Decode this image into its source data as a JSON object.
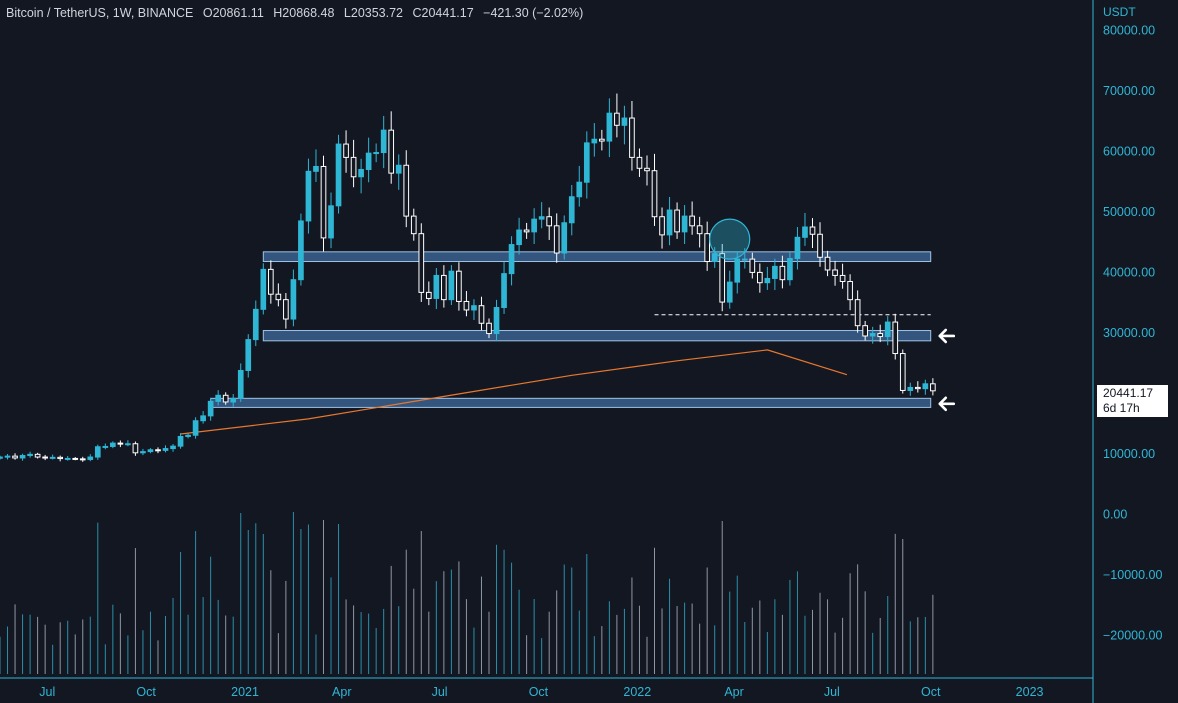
{
  "header": {
    "symbol": "Bitcoin / TetherUS, 1W, BINANCE",
    "open_label": "O",
    "open": "20861.11",
    "high_label": "H",
    "high": "20868.48",
    "low_label": "L",
    "low": "20353.72",
    "close_label": "C",
    "close": "20441.17",
    "change": "−421.30 (−2.02%)"
  },
  "axis_unit": "USDT",
  "last_price": {
    "value": "20441.17",
    "countdown": "6d 17h"
  },
  "colors": {
    "background": "#131722",
    "up": "#2fb6d5",
    "down": "#ffffff",
    "zone_fill": "#33557e",
    "zone_border": "#9fc3e6",
    "ma": "#e8782e",
    "axis_text": "#2fb6d5",
    "volume_up": "#2a8fa8",
    "volume_down": "#8e96a3"
  },
  "chart_data": {
    "type": "candlestick",
    "timeframe": "1W",
    "x_range": [
      "2020-05-18",
      "2023-03-01"
    ],
    "ylim": [
      -27000,
      85000
    ],
    "y_ticks": [
      {
        "value": 80000,
        "label": "80000.00"
      },
      {
        "value": 70000,
        "label": "70000.00"
      },
      {
        "value": 60000,
        "label": "60000.00"
      },
      {
        "value": 50000,
        "label": "50000.00"
      },
      {
        "value": 40000,
        "label": "40000.00"
      },
      {
        "value": 30000,
        "label": "30000.00"
      },
      {
        "value": 10000,
        "label": "10000.00"
      },
      {
        "value": 0,
        "label": "0.00"
      },
      {
        "value": -10000,
        "label": "−10000.00"
      },
      {
        "value": -20000,
        "label": "−20000.00"
      }
    ],
    "x_ticks": [
      {
        "date": "2020-07-01",
        "label": "Jul"
      },
      {
        "date": "2020-10-01",
        "label": "Oct"
      },
      {
        "date": "2021-01-01",
        "label": "2021"
      },
      {
        "date": "2021-04-01",
        "label": "Apr"
      },
      {
        "date": "2021-07-01",
        "label": "Jul"
      },
      {
        "date": "2021-10-01",
        "label": "Oct"
      },
      {
        "date": "2022-01-01",
        "label": "2022"
      },
      {
        "date": "2022-04-01",
        "label": "Apr"
      },
      {
        "date": "2022-07-01",
        "label": "Jul"
      },
      {
        "date": "2022-10-01",
        "label": "Oct"
      },
      {
        "date": "2023-01-01",
        "label": "2023"
      }
    ],
    "first_candle_date": "2020-05-18",
    "closes": [
      9500,
      9650,
      9350,
      9750,
      9950,
      9500,
      9400,
      9450,
      9250,
      9270,
      9200,
      9100,
      9500,
      11200,
      11250,
      11800,
      11650,
      11700,
      10200,
      10400,
      10700,
      10600,
      10900,
      11300,
      12900,
      13100,
      15500,
      16300,
      18700,
      19700,
      18600,
      19200,
      23800,
      28900,
      33900,
      40500,
      36400,
      35500,
      32300,
      38800,
      48500,
      56700,
      57500,
      45700,
      51000,
      61200,
      59000,
      55800,
      57000,
      59700,
      59800,
      63500,
      56400,
      57700,
      49300,
      46400,
      36700,
      35700,
      39500,
      35500,
      40200,
      35200,
      33800,
      34500,
      31600,
      29900,
      34200,
      39800,
      44600,
      47000,
      46700,
      48800,
      49200,
      47700,
      43200,
      48200,
      52500,
      54900,
      61400,
      62000,
      61700,
      66300,
      64300,
      65500,
      59000,
      57200,
      56800,
      49200,
      46200,
      50300,
      46700,
      49300,
      47700,
      46400,
      41800,
      43100,
      35100,
      38400,
      42200,
      42200,
      40000,
      38300,
      39000,
      41000,
      38800,
      42300,
      45800,
      47500,
      46300,
      42500,
      40400,
      39500,
      38500,
      35500,
      31200,
      29500,
      29900,
      29400,
      31800,
      26600,
      20500,
      21000,
      20800,
      21600,
      20441.17
    ],
    "ma_line": [
      {
        "date": "2020-11-02",
        "value": 13300
      },
      {
        "date": "2021-03-01",
        "value": 15800
      },
      {
        "date": "2021-07-01",
        "value": 19400
      },
      {
        "date": "2021-11-01",
        "value": 23000
      },
      {
        "date": "2022-02-07",
        "value": 25400
      },
      {
        "date": "2022-05-02",
        "value": 27200
      },
      {
        "date": "2022-07-15",
        "value": 23100
      }
    ],
    "zones": [
      {
        "from": "2021-01-18",
        "to": "2022-10-01",
        "low": 41800,
        "high": 43400
      },
      {
        "from": "2021-01-18",
        "to": "2022-10-01",
        "low": 28700,
        "high": 30400
      },
      {
        "from": "2020-11-30",
        "to": "2022-10-01",
        "low": 17700,
        "high": 19200
      }
    ],
    "dashed_level": {
      "from": "2022-01-17",
      "to": "2022-10-01",
      "value": 33000
    },
    "highlight_circle": {
      "date": "2022-03-28",
      "value": 45500
    },
    "arrows": [
      {
        "date": "2022-10-15",
        "value": 29500
      },
      {
        "date": "2022-10-15",
        "value": 18300
      }
    ]
  }
}
